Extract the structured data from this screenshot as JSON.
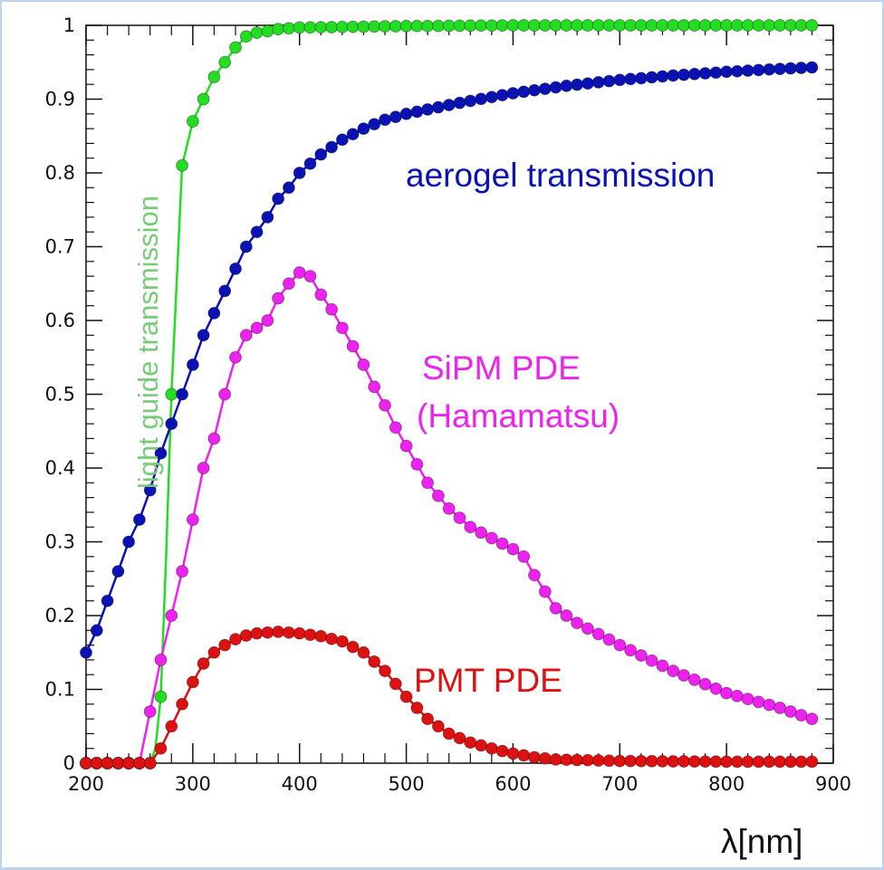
{
  "chart_data": {
    "type": "line",
    "xlabel": "λ[nm]",
    "ylabel": "",
    "xlim": [
      200,
      900
    ],
    "ylim": [
      0,
      1
    ],
    "x_ticks": [
      "200",
      "300",
      "400",
      "500",
      "600",
      "700",
      "800",
      "900"
    ],
    "y_ticks": [
      "0",
      "0.1",
      "0.2",
      "0.3",
      "0.4",
      "0.5",
      "0.6",
      "0.7",
      "0.8",
      "0.9",
      "1"
    ],
    "grid": false,
    "legend": "none",
    "annotations": {
      "aerogel": "aerogel transmission",
      "sipm_line1": "SiPM PDE",
      "sipm_line2": "(Hamamatsu)",
      "pmt": "PMT PDE",
      "light_guide": "light guide transmission"
    },
    "series": [
      {
        "name": "light guide transmission",
        "color": "#22dd22",
        "x": [
          200,
          210,
          220,
          230,
          240,
          250,
          260,
          265,
          270,
          275,
          280,
          290,
          300,
          310,
          320,
          330,
          340,
          350,
          360,
          370,
          380,
          400,
          450,
          500,
          600,
          700,
          800,
          880
        ],
        "y": [
          0,
          0,
          0,
          0,
          0,
          0,
          0,
          0.02,
          0.09,
          0.28,
          0.5,
          0.81,
          0.87,
          0.9,
          0.93,
          0.95,
          0.97,
          0.985,
          0.99,
          0.992,
          0.995,
          0.997,
          0.998,
          0.999,
          1.0,
          1.0,
          1.0,
          1.0
        ]
      },
      {
        "name": "aerogel transmission",
        "color": "#0b12b4",
        "x": [
          200,
          210,
          220,
          230,
          240,
          250,
          260,
          270,
          280,
          290,
          300,
          310,
          320,
          330,
          340,
          350,
          360,
          370,
          380,
          390,
          400,
          420,
          440,
          460,
          480,
          500,
          550,
          600,
          650,
          700,
          750,
          800,
          850,
          880
        ],
        "y": [
          0.15,
          0.18,
          0.22,
          0.26,
          0.3,
          0.33,
          0.37,
          0.42,
          0.46,
          0.5,
          0.54,
          0.58,
          0.61,
          0.64,
          0.67,
          0.7,
          0.72,
          0.74,
          0.765,
          0.78,
          0.8,
          0.825,
          0.845,
          0.86,
          0.872,
          0.88,
          0.895,
          0.908,
          0.918,
          0.926,
          0.932,
          0.937,
          0.941,
          0.943
        ]
      },
      {
        "name": "SiPM PDE (Hamamatsu)",
        "color": "#ee22ee",
        "x": [
          200,
          240,
          250,
          260,
          270,
          280,
          290,
          300,
          310,
          320,
          330,
          340,
          350,
          360,
          370,
          380,
          390,
          400,
          410,
          420,
          430,
          440,
          450,
          460,
          470,
          480,
          490,
          500,
          520,
          540,
          560,
          580,
          600,
          610,
          620,
          640,
          660,
          700,
          750,
          800,
          850,
          880
        ],
        "y": [
          0,
          0,
          0,
          0.07,
          0.14,
          0.2,
          0.26,
          0.33,
          0.4,
          0.44,
          0.5,
          0.55,
          0.58,
          0.59,
          0.6,
          0.63,
          0.65,
          0.665,
          0.66,
          0.635,
          0.615,
          0.59,
          0.565,
          0.54,
          0.51,
          0.485,
          0.455,
          0.43,
          0.38,
          0.345,
          0.32,
          0.305,
          0.29,
          0.28,
          0.255,
          0.21,
          0.19,
          0.16,
          0.125,
          0.095,
          0.075,
          0.06
        ]
      },
      {
        "name": "PMT PDE",
        "color": "#dd1111",
        "x": [
          200,
          250,
          260,
          270,
          280,
          290,
          300,
          310,
          320,
          330,
          340,
          350,
          360,
          380,
          400,
          420,
          440,
          460,
          480,
          500,
          520,
          540,
          560,
          580,
          600,
          620,
          640,
          700,
          800,
          880
        ],
        "y": [
          0,
          0,
          0,
          0.02,
          0.05,
          0.08,
          0.11,
          0.135,
          0.15,
          0.16,
          0.168,
          0.173,
          0.176,
          0.178,
          0.176,
          0.172,
          0.165,
          0.15,
          0.125,
          0.09,
          0.06,
          0.04,
          0.028,
          0.02,
          0.013,
          0.008,
          0.005,
          0.003,
          0.002,
          0.002
        ]
      }
    ]
  }
}
